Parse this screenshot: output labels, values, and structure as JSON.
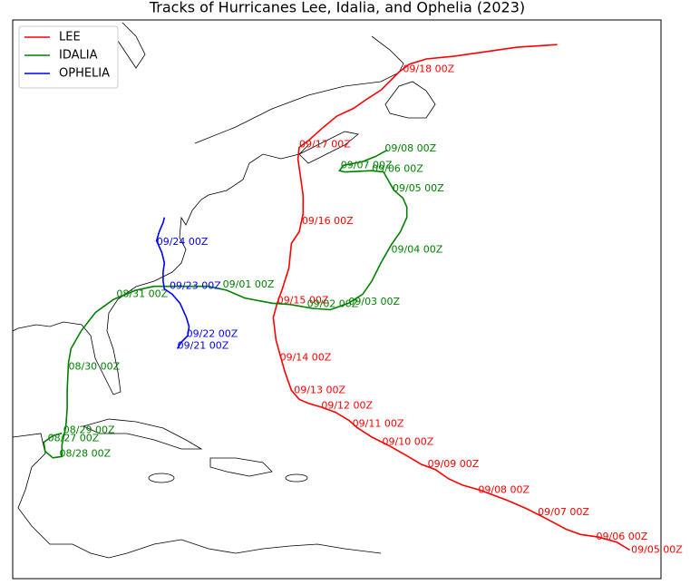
{
  "chart_data": {
    "type": "map",
    "title": "Tracks of Hurricanes Lee, Idalia, and Ophelia (2023)",
    "xlim": [
      -90,
      -40
    ],
    "ylim": [
      10,
      53
    ],
    "legend": "upper left",
    "series": [
      {
        "name": "LEE",
        "color": "#ff0000",
        "x": [
          -42.4,
          -43.4,
          -44.8,
          -46.2,
          -47.3,
          -49.0,
          -50.4,
          -51.8,
          -53.9,
          -55.3,
          -56.4,
          -57.4,
          -58.5,
          -59.5,
          -60.9,
          -62.3,
          -63.4,
          -64.1,
          -65.1,
          -66.2,
          -67.2,
          -67.9,
          -68.5,
          -69.0,
          -69.4,
          -69.7,
          -69.9,
          -69.6,
          -69.2,
          -68.7,
          -68.5,
          -67.9,
          -67.6,
          -67.6,
          -67.8,
          -68.0,
          -67.9,
          -67.2,
          -66.2,
          -65.0,
          -63.7,
          -62.7,
          -61.6,
          -60.8,
          -60.2,
          -59.4,
          -58.1,
          -56.0,
          -53.9,
          -51.1,
          -48.0
        ],
        "y": [
          12.2,
          12.8,
          13.2,
          13.4,
          13.8,
          14.7,
          15.4,
          16.0,
          16.8,
          17.2,
          17.7,
          18.4,
          18.8,
          19.4,
          20.2,
          20.9,
          21.6,
          22.2,
          22.8,
          23.2,
          23.5,
          23.8,
          24.5,
          25.9,
          27.3,
          28.4,
          30.1,
          31.2,
          32.3,
          33.9,
          35.8,
          36.7,
          38.1,
          39.5,
          40.9,
          42.3,
          43.2,
          43.7,
          44.6,
          45.6,
          46.2,
          46.9,
          47.6,
          48.4,
          49.0,
          49.6,
          50.0,
          50.2,
          50.5,
          50.9,
          51.1
        ],
        "labels": [
          {
            "text": "09/05 00Z",
            "x": -42.3,
            "y": 12.2
          },
          {
            "text": "09/06 00Z",
            "x": -45.0,
            "y": 13.2
          },
          {
            "text": "09/07 00Z",
            "x": -49.5,
            "y": 15.1
          },
          {
            "text": "09/08 00Z",
            "x": -54.1,
            "y": 16.8
          },
          {
            "text": "09/09 00Z",
            "x": -58.0,
            "y": 18.8
          },
          {
            "text": "09/10 00Z",
            "x": -61.5,
            "y": 20.5
          },
          {
            "text": "09/11 00Z",
            "x": -63.8,
            "y": 21.9
          },
          {
            "text": "09/12 00Z",
            "x": -66.2,
            "y": 23.3
          },
          {
            "text": "09/13 00Z",
            "x": -68.3,
            "y": 24.5
          },
          {
            "text": "09/14 00Z",
            "x": -69.4,
            "y": 27.0
          },
          {
            "text": "09/15 00Z",
            "x": -69.6,
            "y": 31.4
          },
          {
            "text": "09/16 00Z",
            "x": -67.7,
            "y": 37.5
          },
          {
            "text": "09/17 00Z",
            "x": -67.9,
            "y": 43.4
          },
          {
            "text": "09/18 00Z",
            "x": -59.9,
            "y": 49.2
          }
        ]
      },
      {
        "name": "IDALIA",
        "color": "#008000",
        "x": [
          -86.2,
          -86.9,
          -87.6,
          -87.5,
          -86.9,
          -86.2,
          -86.2,
          -85.9,
          -85.8,
          -85.8,
          -85.7,
          -85.5,
          -84.7,
          -83.6,
          -82.2,
          -80.5,
          -79.1,
          -77.0,
          -74.9,
          -73.5,
          -72.1,
          -70.0,
          -68.6,
          -66.9,
          -65.5,
          -64.1,
          -63.0,
          -62.3,
          -61.6,
          -60.8,
          -60.1,
          -59.6,
          -59.6,
          -59.9,
          -60.6,
          -61.0,
          -61.4,
          -62.3,
          -64.4,
          -64.8,
          -64.5,
          -63.0,
          -62.0,
          -61.1
        ],
        "y": [
          21.2,
          21.0,
          20.5,
          19.8,
          19.3,
          19.4,
          20.3,
          21.7,
          23.1,
          24.5,
          26.6,
          27.7,
          29.1,
          30.5,
          31.5,
          32.2,
          32.5,
          32.5,
          32.5,
          32.2,
          31.6,
          31.2,
          31.1,
          30.8,
          30.7,
          31.2,
          31.9,
          32.9,
          34.3,
          35.7,
          36.7,
          37.8,
          38.6,
          39.3,
          39.9,
          40.6,
          41.3,
          41.4,
          41.3,
          41.4,
          41.8,
          42.1,
          42.5,
          43.0
        ],
        "labels": [
          {
            "text": "08/27 00Z",
            "x": -87.3,
            "y": 20.8
          },
          {
            "text": "08/28 00Z",
            "x": -86.4,
            "y": 19.6
          },
          {
            "text": "08/29 00Z",
            "x": -86.1,
            "y": 21.4
          },
          {
            "text": "08/30 00Z",
            "x": -85.7,
            "y": 26.3
          },
          {
            "text": "08/31 00Z",
            "x": -82.0,
            "y": 31.9
          },
          {
            "text": "09/01 00Z",
            "x": -73.8,
            "y": 32.6
          },
          {
            "text": "09/02 00Z",
            "x": -67.3,
            "y": 31.1
          },
          {
            "text": "09/03 00Z",
            "x": -64.1,
            "y": 31.3
          },
          {
            "text": "09/04 00Z",
            "x": -60.8,
            "y": 35.3
          },
          {
            "text": "09/05 00Z",
            "x": -60.7,
            "y": 40.0
          },
          {
            "text": "09/06 00Z",
            "x": -62.3,
            "y": 41.5
          },
          {
            "text": "09/07 00Z",
            "x": -64.7,
            "y": 41.8
          },
          {
            "text": "09/08 00Z",
            "x": -61.3,
            "y": 43.1
          }
        ]
      },
      {
        "name": "OPHELIA",
        "color": "#0000ff",
        "x": [
          -77.3,
          -77.0,
          -76.5,
          -76.4,
          -76.6,
          -77.1,
          -77.7,
          -78.3,
          -78.4,
          -78.4,
          -78.3,
          -78.5,
          -78.9,
          -78.7,
          -78.4,
          -78.3
        ],
        "y": [
          27.7,
          28.2,
          28.7,
          29.4,
          30.1,
          31.2,
          31.9,
          32.3,
          32.9,
          33.6,
          34.3,
          35.1,
          36.0,
          36.7,
          37.4,
          37.8
        ],
        "labels": [
          {
            "text": "09/21 00Z",
            "x": -77.3,
            "y": 27.9
          },
          {
            "text": "09/22 00Z",
            "x": -76.6,
            "y": 28.8
          },
          {
            "text": "09/23 00Z",
            "x": -77.9,
            "y": 32.5
          },
          {
            "text": "09/24 00Z",
            "x": -78.9,
            "y": 35.9
          }
        ]
      }
    ]
  }
}
